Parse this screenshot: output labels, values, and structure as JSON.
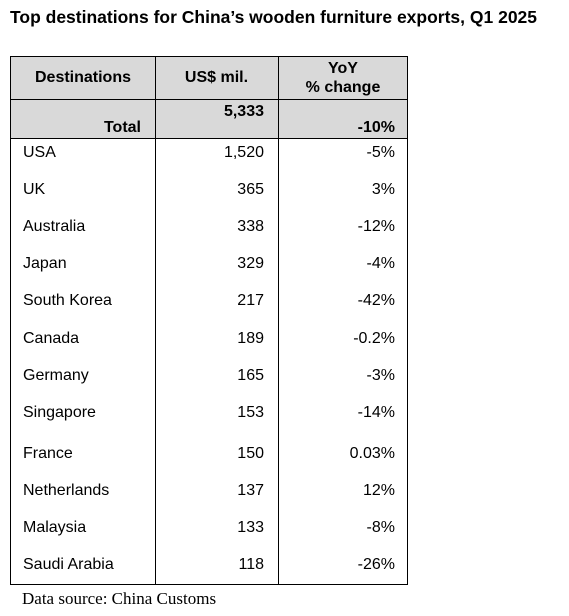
{
  "title": "Top destinations for China’s wooden furniture exports, Q1 2025",
  "table": {
    "header": [
      "Destinations",
      "US$ mil.",
      "YoY\n% change"
    ],
    "total": [
      "Total",
      "5,333",
      "-10%"
    ],
    "rows": [
      [
        "USA",
        "1,520",
        "-5%"
      ],
      [
        "UK",
        "365",
        "3%"
      ],
      [
        "Australia",
        "338",
        "-12%"
      ],
      [
        "Japan",
        "329",
        "-4%"
      ],
      [
        "South Korea",
        "217",
        "-42%"
      ],
      [
        "Canada",
        "189",
        "-0.2%"
      ],
      [
        "Germany",
        "165",
        "-3%"
      ],
      [
        "Singapore",
        "153",
        "-14%"
      ],
      [
        "France",
        "150",
        "0.03%"
      ],
      [
        "Netherlands",
        "137",
        "12%"
      ],
      [
        "Malaysia",
        "133",
        "-8%"
      ],
      [
        "Saudi Arabia",
        "118",
        "-26%"
      ]
    ]
  },
  "source": "Data source: China Customs"
}
